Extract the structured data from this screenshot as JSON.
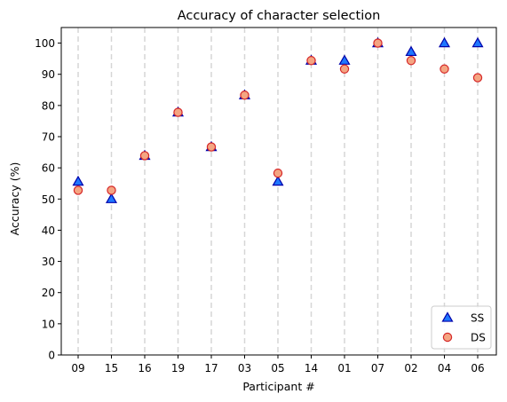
{
  "chart_data": {
    "type": "scatter",
    "title": "Accuracy of character selection",
    "xlabel": "Participant #",
    "ylabel": "Accuracy (%)",
    "categories": [
      "09",
      "15",
      "16",
      "19",
      "17",
      "03",
      "05",
      "14",
      "01",
      "07",
      "02",
      "04",
      "06"
    ],
    "ylim": [
      0,
      105
    ],
    "yticks": [
      0,
      10,
      20,
      30,
      40,
      50,
      60,
      70,
      80,
      90,
      100
    ],
    "grid": "vertical dashed lines at each participant",
    "legend_position": "lower-right",
    "series": [
      {
        "name": "SS",
        "marker": "triangle",
        "face_color": "#1f77ff",
        "edge_color": "#0000aa",
        "values": [
          55.6,
          50.0,
          63.9,
          77.8,
          66.7,
          83.3,
          55.6,
          94.4,
          94.4,
          100.0,
          97.2,
          100.0,
          100.0
        ]
      },
      {
        "name": "DS",
        "marker": "circle",
        "face_color": "#f4a582",
        "edge_color": "#d62728",
        "values": [
          52.8,
          52.8,
          63.9,
          77.8,
          66.7,
          83.3,
          58.3,
          94.4,
          91.7,
          100.0,
          94.4,
          91.7,
          88.9
        ]
      }
    ]
  }
}
